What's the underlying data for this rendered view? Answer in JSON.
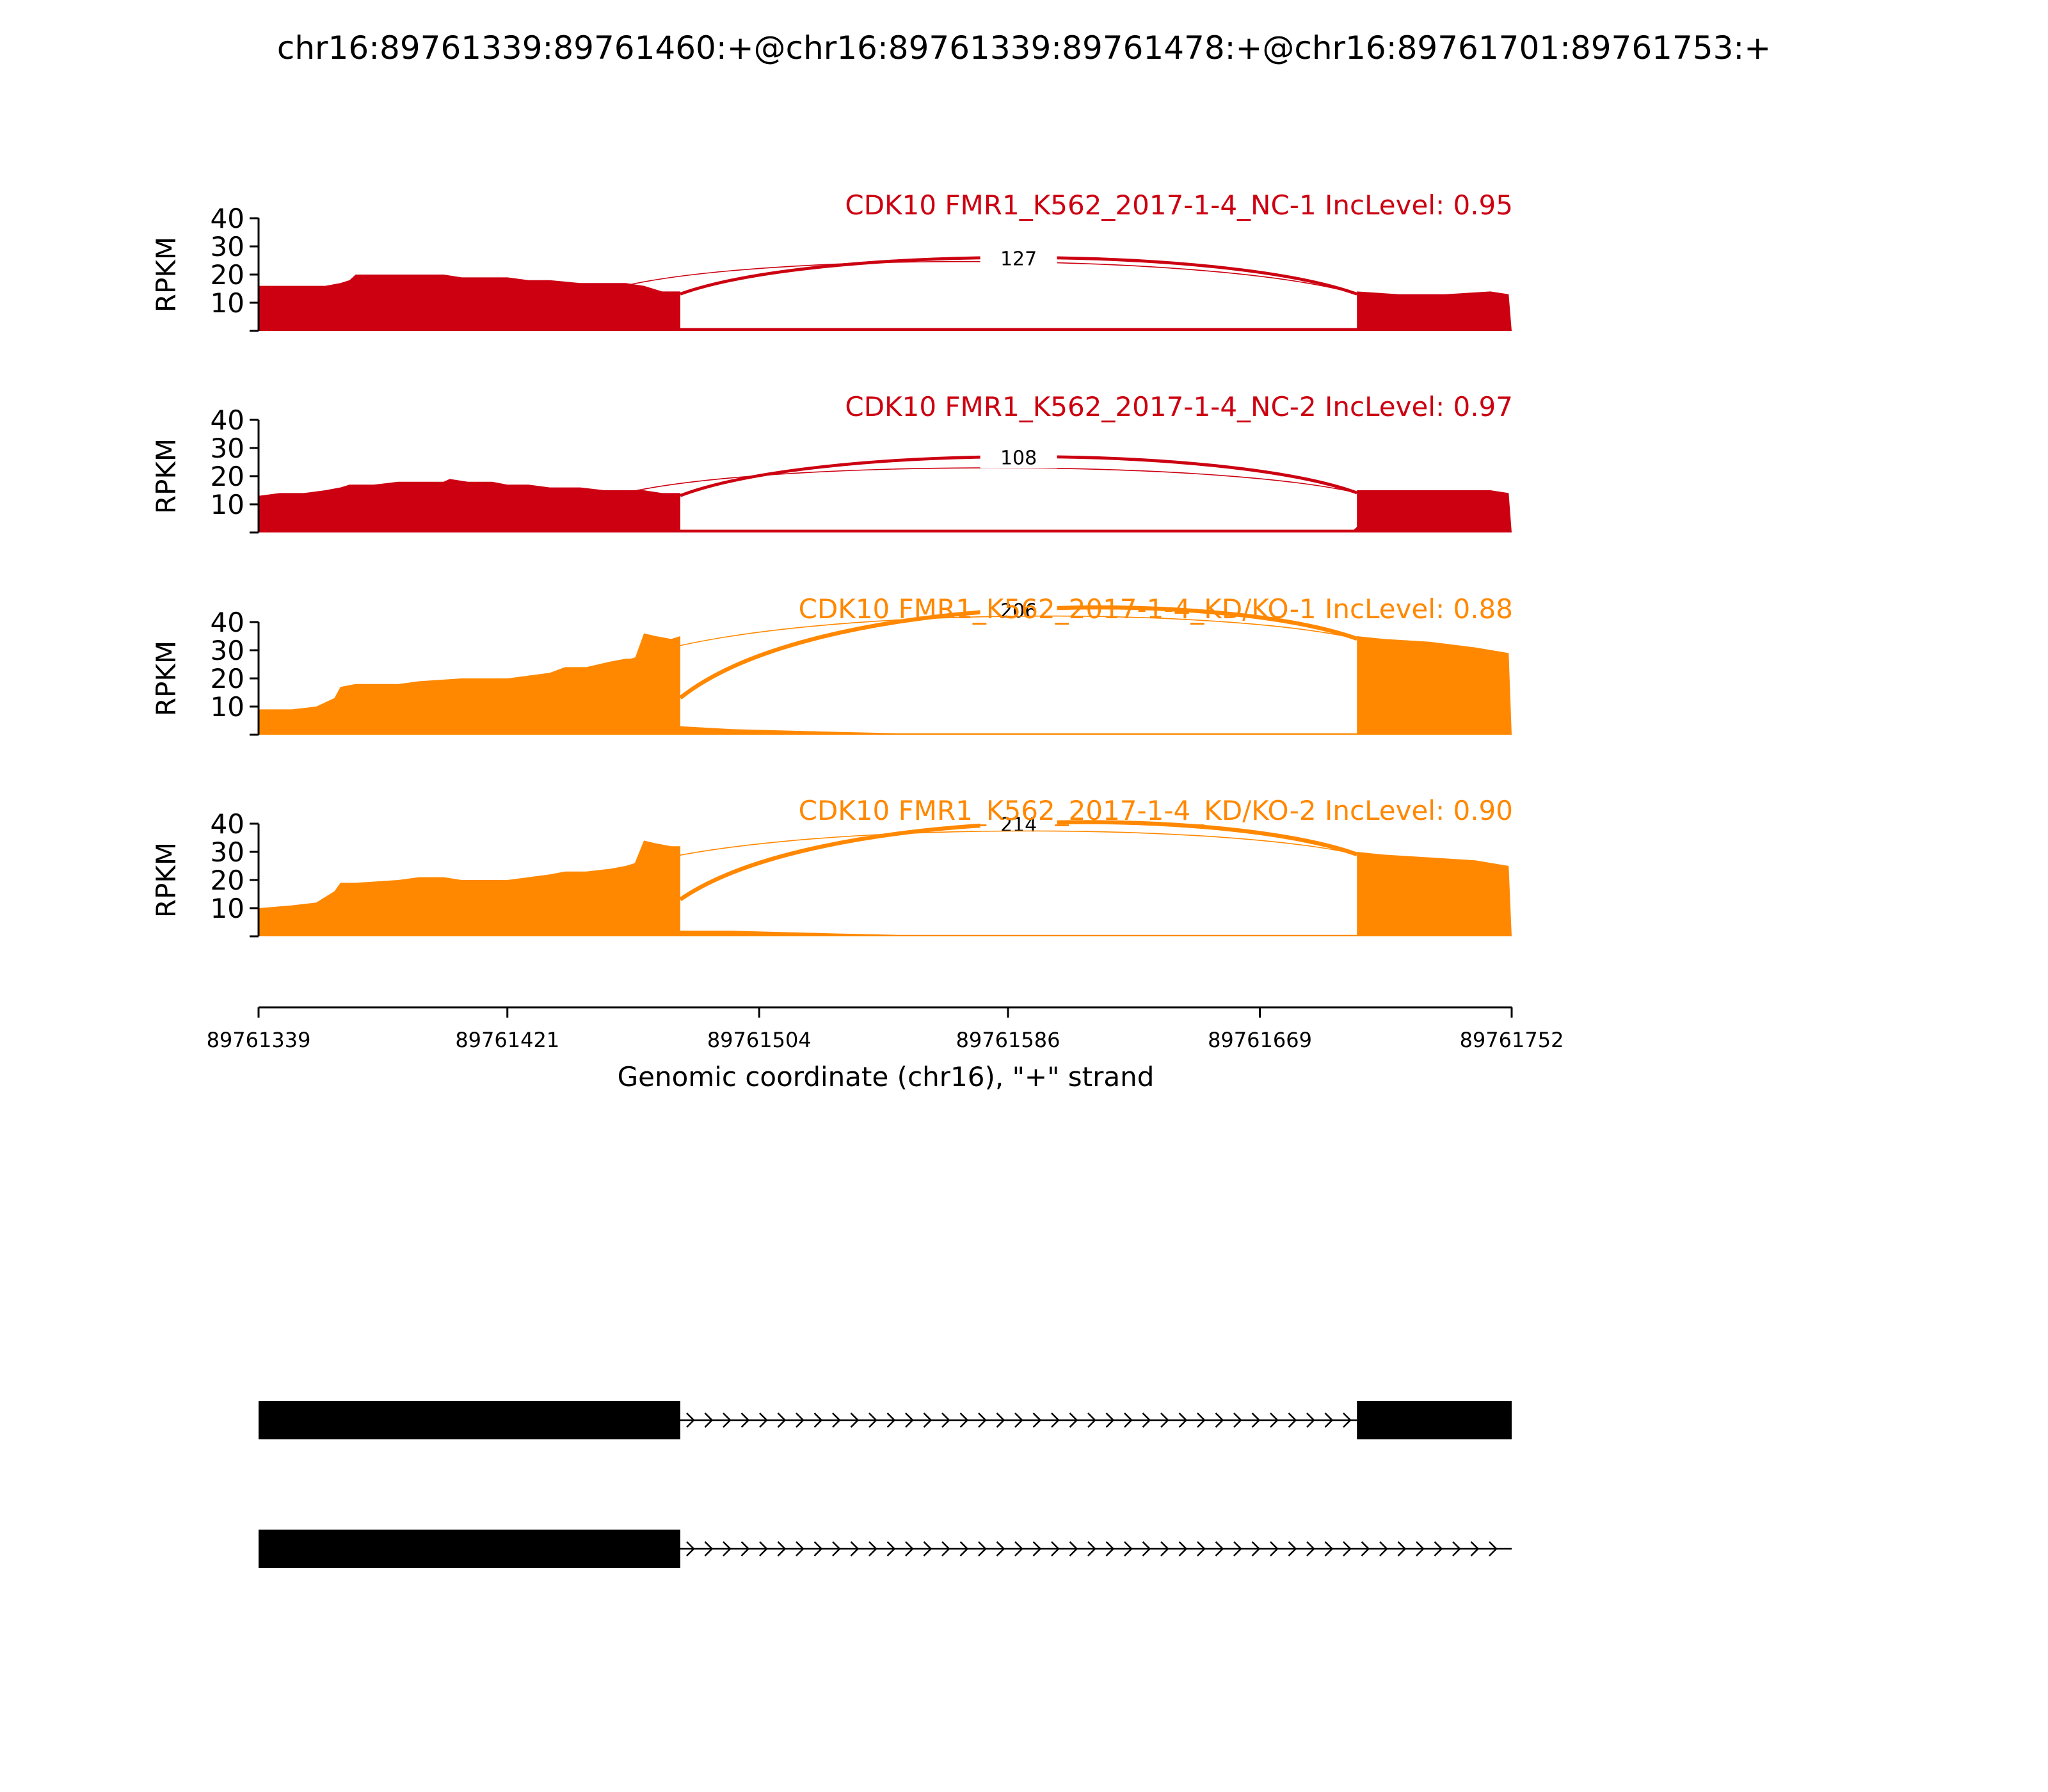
{
  "figure_title": "chr16:89761339:89761460:+@chr16:89761339:89761478:+@chr16:89761701:89761753:+",
  "colors": {
    "nc": "#cc0011",
    "kd": "#ff8800",
    "text": "#000000",
    "gene": "#000000"
  },
  "chart_data": {
    "type": "area",
    "ylabel": "RPKM",
    "ylim": [
      0,
      40
    ],
    "yticks": [
      10,
      20,
      30,
      40
    ],
    "xlabel": "Genomic coordinate (chr16), \"+\" strand",
    "xlim": [
      89761339,
      89761752
    ],
    "xticks": [
      89761339,
      89761421,
      89761504,
      89761586,
      89761669,
      89761752
    ],
    "xtick_labels": [
      "89761339",
      "89761421",
      "89761504",
      "89761586",
      "89761669",
      "89761752"
    ],
    "tracks": [
      {
        "label": "CDK10 FMR1_K562_2017-1-4_NC-1 IncLevel: 0.95",
        "group": "nc",
        "coverage": [
          [
            89761339,
            16
          ],
          [
            89761346,
            16
          ],
          [
            89761354,
            16
          ],
          [
            89761361,
            16
          ],
          [
            89761366,
            17
          ],
          [
            89761369,
            18
          ],
          [
            89761371,
            20
          ],
          [
            89761377,
            20
          ],
          [
            89761385,
            20
          ],
          [
            89761392,
            20
          ],
          [
            89761400,
            20
          ],
          [
            89761406,
            19
          ],
          [
            89761416,
            19
          ],
          [
            89761421,
            19
          ],
          [
            89761428,
            18
          ],
          [
            89761435,
            18
          ],
          [
            89761445,
            17
          ],
          [
            89761453,
            17
          ],
          [
            89761460,
            17
          ],
          [
            89761466,
            16
          ],
          [
            89761472,
            14
          ],
          [
            89761478,
            14
          ],
          [
            89761478,
            1
          ],
          [
            89761530,
            1
          ],
          [
            89761600,
            1
          ],
          [
            89761650,
            1
          ],
          [
            89761700,
            1
          ],
          [
            89761701,
            1
          ],
          [
            89761701,
            14
          ],
          [
            89761715,
            13
          ],
          [
            89761730,
            13
          ],
          [
            89761745,
            14
          ],
          [
            89761751,
            13
          ],
          [
            89761752,
            0
          ]
        ],
        "junctions": [
          {
            "start": 89761460,
            "end": 89761701,
            "label": "",
            "weight": 1
          },
          {
            "start": 89761478,
            "end": 89761701,
            "label": "127",
            "weight": 3
          }
        ]
      },
      {
        "label": "CDK10 FMR1_K562_2017-1-4_NC-2 IncLevel: 0.97",
        "group": "nc",
        "coverage": [
          [
            89761339,
            13
          ],
          [
            89761346,
            14
          ],
          [
            89761354,
            14
          ],
          [
            89761361,
            15
          ],
          [
            89761366,
            16
          ],
          [
            89761369,
            17
          ],
          [
            89761377,
            17
          ],
          [
            89761385,
            18
          ],
          [
            89761392,
            18
          ],
          [
            89761400,
            18
          ],
          [
            89761402,
            19
          ],
          [
            89761408,
            18
          ],
          [
            89761416,
            18
          ],
          [
            89761421,
            17
          ],
          [
            89761428,
            17
          ],
          [
            89761435,
            16
          ],
          [
            89761445,
            16
          ],
          [
            89761453,
            15
          ],
          [
            89761460,
            15
          ],
          [
            89761466,
            15
          ],
          [
            89761472,
            14
          ],
          [
            89761478,
            14
          ],
          [
            89761478,
            1
          ],
          [
            89761530,
            1
          ],
          [
            89761600,
            1
          ],
          [
            89761650,
            1
          ],
          [
            89761700,
            1
          ],
          [
            89761701,
            2
          ],
          [
            89761701,
            15
          ],
          [
            89761715,
            15
          ],
          [
            89761730,
            15
          ],
          [
            89761745,
            15
          ],
          [
            89761751,
            14
          ],
          [
            89761752,
            0
          ]
        ],
        "junctions": [
          {
            "start": 89761460,
            "end": 89761701,
            "label": "",
            "weight": 1
          },
          {
            "start": 89761478,
            "end": 89761701,
            "label": "108",
            "weight": 3
          }
        ]
      },
      {
        "label": "CDK10 FMR1_K562_2017-1-4_KD/KO-1 IncLevel: 0.88",
        "group": "kd",
        "coverage": [
          [
            89761339,
            9
          ],
          [
            89761350,
            9
          ],
          [
            89761358,
            10
          ],
          [
            89761364,
            13
          ],
          [
            89761366,
            17
          ],
          [
            89761371,
            18
          ],
          [
            89761385,
            18
          ],
          [
            89761392,
            19
          ],
          [
            89761406,
            20
          ],
          [
            89761421,
            20
          ],
          [
            89761428,
            21
          ],
          [
            89761435,
            22
          ],
          [
            89761440,
            24
          ],
          [
            89761447,
            24
          ],
          [
            89761455,
            26
          ],
          [
            89761460,
            27
          ],
          [
            89761463,
            27
          ],
          [
            89761466,
            36
          ],
          [
            89761470,
            35
          ],
          [
            89761475,
            34
          ],
          [
            89761478,
            35
          ],
          [
            89761478,
            3
          ],
          [
            89761495,
            2
          ],
          [
            89761530,
            1
          ],
          [
            89761550,
            0.5
          ],
          [
            89761600,
            0.5
          ],
          [
            89761650,
            0.5
          ],
          [
            89761700,
            0.5
          ],
          [
            89761701,
            0.5
          ],
          [
            89761701,
            35
          ],
          [
            89761710,
            34
          ],
          [
            89761725,
            33
          ],
          [
            89761740,
            31
          ],
          [
            89761751,
            29
          ],
          [
            89761752,
            0
          ]
        ],
        "junctions": [
          {
            "start": 89761478,
            "end": 89761701,
            "label": "206",
            "weight": 4
          },
          {
            "start": 89761460,
            "end": 89761701,
            "label": "",
            "weight": 1
          }
        ]
      },
      {
        "label": "CDK10 FMR1_K562_2017-1-4_KD/KO-2 IncLevel: 0.90",
        "group": "kd",
        "coverage": [
          [
            89761339,
            10
          ],
          [
            89761350,
            11
          ],
          [
            89761358,
            12
          ],
          [
            89761364,
            16
          ],
          [
            89761366,
            19
          ],
          [
            89761371,
            19
          ],
          [
            89761385,
            20
          ],
          [
            89761392,
            21
          ],
          [
            89761400,
            21
          ],
          [
            89761406,
            20
          ],
          [
            89761421,
            20
          ],
          [
            89761428,
            21
          ],
          [
            89761435,
            22
          ],
          [
            89761440,
            23
          ],
          [
            89761447,
            23
          ],
          [
            89761455,
            24
          ],
          [
            89761460,
            25
          ],
          [
            89761463,
            26
          ],
          [
            89761466,
            34
          ],
          [
            89761470,
            33
          ],
          [
            89761475,
            32
          ],
          [
            89761478,
            32
          ],
          [
            89761478,
            2
          ],
          [
            89761495,
            2
          ],
          [
            89761530,
            1
          ],
          [
            89761550,
            0.5
          ],
          [
            89761600,
            0.5
          ],
          [
            89761650,
            0.5
          ],
          [
            89761700,
            0.5
          ],
          [
            89761701,
            0.5
          ],
          [
            89761701,
            30
          ],
          [
            89761710,
            29
          ],
          [
            89761725,
            28
          ],
          [
            89761740,
            27
          ],
          [
            89761751,
            25
          ],
          [
            89761752,
            0
          ]
        ],
        "junctions": [
          {
            "start": 89761478,
            "end": 89761701,
            "label": "214",
            "weight": 4
          },
          {
            "start": 89761460,
            "end": 89761701,
            "label": "",
            "weight": 1
          }
        ]
      }
    ],
    "isoforms": [
      {
        "exons": [
          [
            89761339,
            89761478
          ],
          [
            89761701,
            89761752
          ]
        ],
        "intron": [
          89761478,
          89761701
        ]
      },
      {
        "exons": [
          [
            89761339,
            89761478
          ]
        ],
        "intron": [
          89761478,
          89761752
        ]
      }
    ]
  }
}
